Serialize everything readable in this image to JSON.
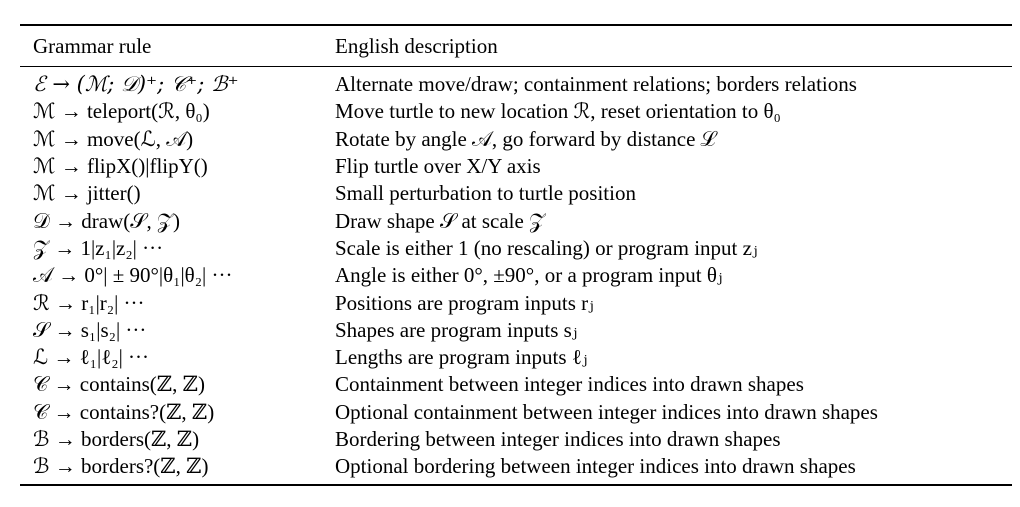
{
  "table": {
    "headers": {
      "rule": "Grammar rule",
      "description": "English description"
    },
    "rows": [
      {
        "rule": "ℰ → (ℳ; 𝒟)⁺; 𝒞⁺; ℬ⁺",
        "description": "Alternate move/draw; containment relations; borders relations"
      },
      {
        "rule": "ℳ → teleport(ℛ, θ₀)",
        "description": "Move turtle to new location ℛ, reset orientation to θ₀"
      },
      {
        "rule": "ℳ → move(ℒ, 𝒜)",
        "description": "Rotate by angle 𝒜, go forward by distance ℒ"
      },
      {
        "rule": "ℳ → flipX()|flipY()",
        "description": "Flip turtle over X/Y axis"
      },
      {
        "rule": "ℳ → jitter()",
        "description": "Small perturbation to turtle position"
      },
      {
        "rule": "𝒟 → draw(𝒮, 𝒵)",
        "description": "Draw shape 𝒮 at scale 𝒵"
      },
      {
        "rule": "𝒵 → 1|z₁|z₂| ···",
        "description": "Scale is either 1 (no rescaling) or program input zⱼ"
      },
      {
        "rule": "𝒜 → 0°| ± 90°|θ₁|θ₂| ···",
        "description": "Angle is either 0°, ±90°, or a program input θⱼ"
      },
      {
        "rule": "ℛ → r₁|r₂| ···",
        "description": "Positions are program inputs rⱼ"
      },
      {
        "rule": "𝒮 → s₁|s₂| ···",
        "description": "Shapes are program inputs sⱼ"
      },
      {
        "rule": "ℒ → ℓ₁|ℓ₂| ···",
        "description": "Lengths are program inputs ℓⱼ"
      },
      {
        "rule": "𝒞 → contains(ℤ, ℤ)",
        "description": "Containment between integer indices into drawn shapes"
      },
      {
        "rule": "𝒞 → contains?(ℤ, ℤ)",
        "description": "Optional containment between integer indices into drawn shapes"
      },
      {
        "rule": "ℬ → borders(ℤ, ℤ)",
        "description": "Bordering between integer indices into drawn shapes"
      },
      {
        "rule": "ℬ → borders?(ℤ, ℤ)",
        "description": "Optional bordering between integer indices into drawn shapes"
      }
    ]
  }
}
